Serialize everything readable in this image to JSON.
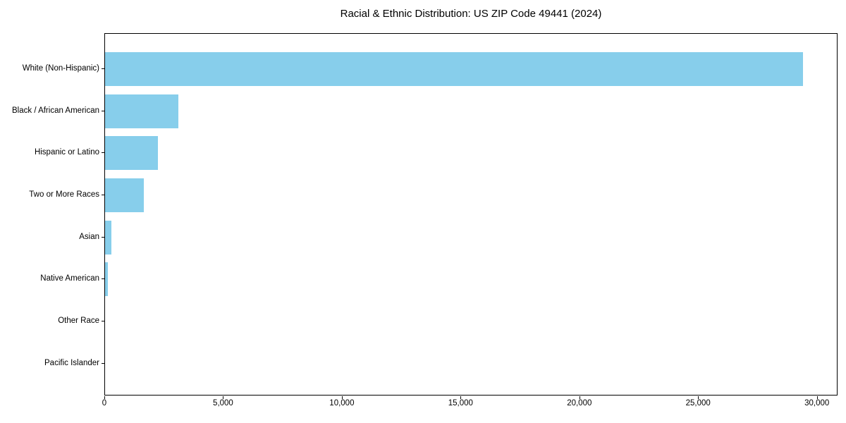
{
  "chart_data": {
    "type": "bar",
    "orientation": "horizontal",
    "title": "Racial & Ethnic Distribution: US ZIP Code 49441 (2024)",
    "categories": [
      "White (Non-Hispanic)",
      "Black / African American",
      "Hispanic or Latino",
      "Two or More Races",
      "Asian",
      "Native American",
      "Other Race",
      "Pacific Islander"
    ],
    "values": [
      29400,
      3100,
      2230,
      1630,
      270,
      120,
      0,
      0
    ],
    "xlabel": "",
    "ylabel": "",
    "xlim": [
      0,
      30870
    ],
    "x_ticks": [
      0,
      5000,
      10000,
      15000,
      20000,
      25000,
      30000
    ],
    "x_tick_labels": [
      "0",
      "5,000",
      "10,000",
      "15,000",
      "20,000",
      "25,000",
      "30,000"
    ],
    "grid": false,
    "legend": null,
    "bar_color": "#87CEEB",
    "axis_color": "#000000",
    "background_color": "#ffffff"
  }
}
